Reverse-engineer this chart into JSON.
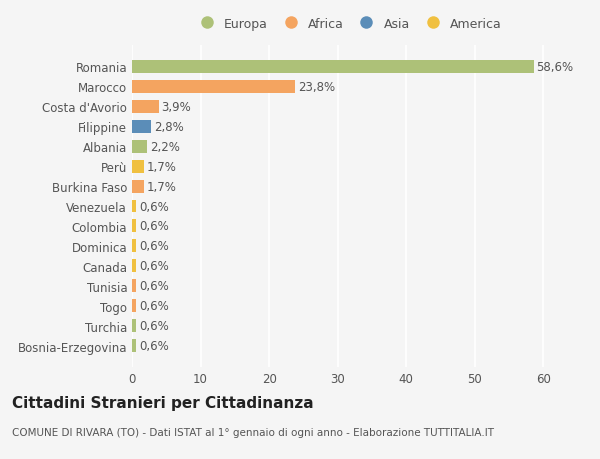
{
  "categories": [
    "Bosnia-Erzegovina",
    "Turchia",
    "Togo",
    "Tunisia",
    "Canada",
    "Dominica",
    "Colombia",
    "Venezuela",
    "Burkina Faso",
    "Perù",
    "Albania",
    "Filippine",
    "Costa d'Avorio",
    "Marocco",
    "Romania"
  ],
  "values": [
    0.6,
    0.6,
    0.6,
    0.6,
    0.6,
    0.6,
    0.6,
    0.6,
    1.7,
    1.7,
    2.2,
    2.8,
    3.9,
    23.8,
    58.6
  ],
  "labels": [
    "0,6%",
    "0,6%",
    "0,6%",
    "0,6%",
    "0,6%",
    "0,6%",
    "0,6%",
    "0,6%",
    "1,7%",
    "1,7%",
    "2,2%",
    "2,8%",
    "3,9%",
    "23,8%",
    "58,6%"
  ],
  "colors": [
    "#adc178",
    "#adc178",
    "#f4a460",
    "#f4a460",
    "#f0c040",
    "#f0c040",
    "#f0c040",
    "#f0c040",
    "#f4a460",
    "#f0c040",
    "#adc178",
    "#5b8db8",
    "#f4a460",
    "#f4a460",
    "#adc178"
  ],
  "legend_colors": {
    "Europa": "#adc178",
    "Africa": "#f4a460",
    "Asia": "#5b8db8",
    "America": "#f0c040"
  },
  "legend_order": [
    "Europa",
    "Africa",
    "Asia",
    "America"
  ],
  "title": "Cittadini Stranieri per Cittadinanza",
  "subtitle": "COMUNE DI RIVARA (TO) - Dati ISTAT al 1° gennaio di ogni anno - Elaborazione TUTTITALIA.IT",
  "xlim": [
    0,
    63
  ],
  "xticks": [
    0,
    10,
    20,
    30,
    40,
    50,
    60
  ],
  "background_color": "#f5f5f5",
  "grid_color": "#ffffff",
  "label_fontsize": 8.5,
  "tick_fontsize": 8.5,
  "title_fontsize": 11,
  "subtitle_fontsize": 7.5
}
